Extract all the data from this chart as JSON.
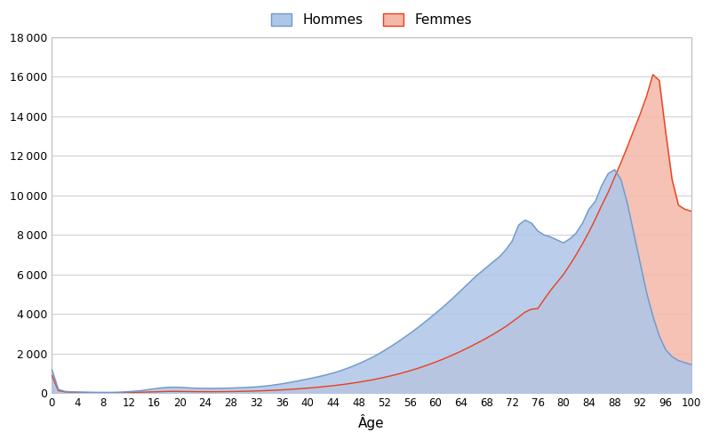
{
  "xlabel": "Âge",
  "ylabel": "",
  "xlim": [
    0,
    100
  ],
  "ylim": [
    0,
    18000
  ],
  "yticks": [
    0,
    2000,
    4000,
    6000,
    8000,
    10000,
    12000,
    14000,
    16000,
    18000
  ],
  "xticks": [
    0,
    4,
    8,
    12,
    16,
    20,
    24,
    28,
    32,
    36,
    40,
    44,
    48,
    52,
    56,
    60,
    64,
    68,
    72,
    76,
    80,
    84,
    88,
    92,
    96,
    100
  ],
  "hommes_color_fill": "#aec6e8",
  "hommes_color_line": "#7099c8",
  "femmes_color_fill": "#f4b8a8",
  "femmes_color_line": "#e84020",
  "background_color": "#ffffff",
  "border_color": "#bbbbbb",
  "grid_color": "#d0d0d0",
  "ages": [
    0,
    1,
    2,
    3,
    4,
    5,
    6,
    7,
    8,
    9,
    10,
    11,
    12,
    13,
    14,
    15,
    16,
    17,
    18,
    19,
    20,
    21,
    22,
    23,
    24,
    25,
    26,
    27,
    28,
    29,
    30,
    31,
    32,
    33,
    34,
    35,
    36,
    37,
    38,
    39,
    40,
    41,
    42,
    43,
    44,
    45,
    46,
    47,
    48,
    49,
    50,
    51,
    52,
    53,
    54,
    55,
    56,
    57,
    58,
    59,
    60,
    61,
    62,
    63,
    64,
    65,
    66,
    67,
    68,
    69,
    70,
    71,
    72,
    73,
    74,
    75,
    76,
    77,
    78,
    79,
    80,
    81,
    82,
    83,
    84,
    85,
    86,
    87,
    88,
    89,
    90,
    91,
    92,
    93,
    94,
    95,
    96,
    97,
    98,
    99,
    100
  ],
  "hommes": [
    1200,
    200,
    100,
    75,
    65,
    60,
    55,
    52,
    50,
    50,
    55,
    65,
    85,
    110,
    140,
    185,
    230,
    270,
    300,
    310,
    300,
    285,
    265,
    255,
    250,
    248,
    252,
    258,
    268,
    280,
    292,
    308,
    328,
    355,
    390,
    435,
    483,
    538,
    598,
    662,
    725,
    793,
    865,
    942,
    1030,
    1125,
    1240,
    1365,
    1498,
    1645,
    1800,
    1975,
    2165,
    2365,
    2575,
    2795,
    3025,
    3265,
    3515,
    3775,
    4040,
    4315,
    4600,
    4895,
    5200,
    5510,
    5820,
    6100,
    6370,
    6640,
    6900,
    7250,
    7700,
    8500,
    8750,
    8600,
    8200,
    8000,
    7900,
    7750,
    7600,
    7800,
    8100,
    8600,
    9300,
    9700,
    10500,
    11100,
    11300,
    10800,
    9600,
    8100,
    6600,
    5100,
    3900,
    2900,
    2200,
    1850,
    1650,
    1550,
    1450
  ],
  "femmes": [
    900,
    140,
    75,
    55,
    48,
    43,
    38,
    35,
    33,
    33,
    35,
    38,
    42,
    48,
    57,
    66,
    75,
    85,
    95,
    100,
    96,
    92,
    88,
    85,
    83,
    82,
    83,
    86,
    90,
    96,
    103,
    111,
    120,
    132,
    145,
    160,
    176,
    194,
    215,
    238,
    263,
    290,
    320,
    352,
    387,
    425,
    467,
    513,
    563,
    617,
    675,
    739,
    808,
    882,
    962,
    1048,
    1140,
    1239,
    1345,
    1458,
    1578,
    1705,
    1839,
    1981,
    2130,
    2287,
    2450,
    2618,
    2793,
    2978,
    3173,
    3378,
    3613,
    3848,
    4100,
    4250,
    4280,
    4750,
    5200,
    5600,
    6000,
    6480,
    7000,
    7560,
    8150,
    8800,
    9500,
    10150,
    10900,
    11650,
    12450,
    13280,
    14100,
    15000,
    16100,
    15800,
    13200,
    10800,
    9500,
    9300,
    9200
  ],
  "legend_hommes": "Hommes",
  "legend_femmes": "Femmes"
}
